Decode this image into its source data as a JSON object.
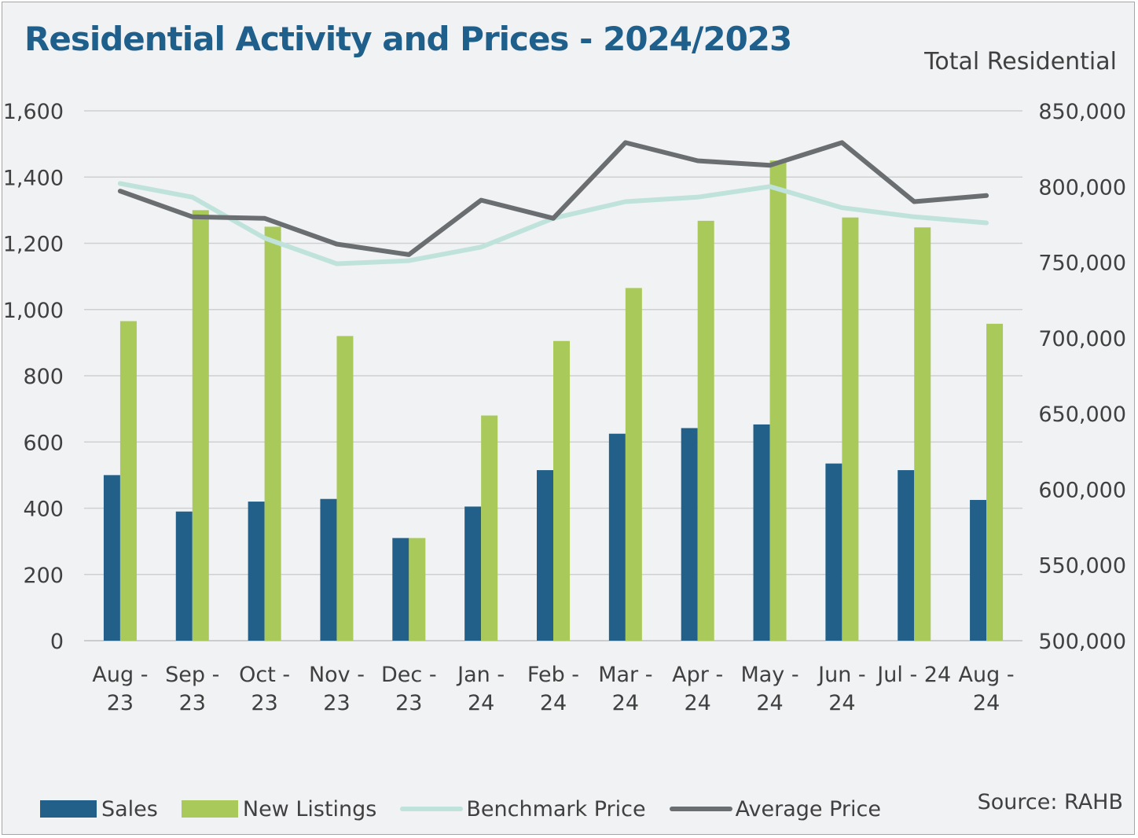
{
  "title": "Residential Activity and Prices - 2024/2023",
  "subtitle": "Total Residential",
  "source": "Source: RAHB",
  "colors": {
    "sales": "#226089",
    "new_listings": "#a9c95a",
    "benchmark_price": "#bfe3da",
    "average_price": "#6b6e70",
    "grid": "#d0d0d0",
    "axis_text": "#404040"
  },
  "legend": [
    {
      "label": "Sales",
      "kind": "bar",
      "color": "#226089"
    },
    {
      "label": "New Listings",
      "kind": "bar",
      "color": "#a9c95a"
    },
    {
      "label": "Benchmark Price",
      "kind": "line",
      "color": "#bfe3da"
    },
    {
      "label": "Average Price",
      "kind": "line",
      "color": "#6b6e70"
    }
  ],
  "chart_data": {
    "type": "bar",
    "categories": [
      [
        "Aug -",
        "23"
      ],
      [
        "Sep -",
        "23"
      ],
      [
        "Oct -",
        "23"
      ],
      [
        "Nov -",
        "23"
      ],
      [
        "Dec -",
        "23"
      ],
      [
        "Jan -",
        "24"
      ],
      [
        "Feb -",
        "24"
      ],
      [
        "Mar -",
        "24"
      ],
      [
        "Apr -",
        "24"
      ],
      [
        "May -",
        "24"
      ],
      [
        "Jun -",
        "24"
      ],
      [
        "Jul - 24"
      ],
      [
        "Aug -",
        "24"
      ]
    ],
    "y_left": {
      "min": 0,
      "max": 1600,
      "step": 200,
      "ticks": [
        "0",
        "200",
        "400",
        "600",
        "800",
        "1,000",
        "1,200",
        "1,400",
        "1,600"
      ]
    },
    "y_right": {
      "min": 500000,
      "max": 850000,
      "step": 50000,
      "ticks": [
        "500,000",
        "550,000",
        "600,000",
        "650,000",
        "700,000",
        "750,000",
        "800,000",
        "850,000"
      ]
    },
    "grid": true,
    "legend_position": "bottom",
    "series": [
      {
        "name": "Sales",
        "type": "bar",
        "axis": "left",
        "values": [
          500,
          390,
          420,
          428,
          310,
          405,
          515,
          625,
          642,
          653,
          535,
          515,
          425
        ]
      },
      {
        "name": "New Listings",
        "type": "bar",
        "axis": "left",
        "values": [
          965,
          1300,
          1250,
          920,
          310,
          680,
          905,
          1065,
          1268,
          1450,
          1278,
          1248,
          957
        ]
      },
      {
        "name": "Benchmark Price",
        "type": "line",
        "axis": "right",
        "values": [
          802000,
          793000,
          766000,
          749000,
          751000,
          760000,
          779000,
          790000,
          793000,
          800000,
          786000,
          780000,
          776000
        ]
      },
      {
        "name": "Average Price",
        "type": "line",
        "axis": "right",
        "values": [
          797000,
          780000,
          779000,
          762000,
          755000,
          791000,
          779000,
          829000,
          817000,
          814000,
          829000,
          790000,
          794000
        ]
      }
    ]
  }
}
